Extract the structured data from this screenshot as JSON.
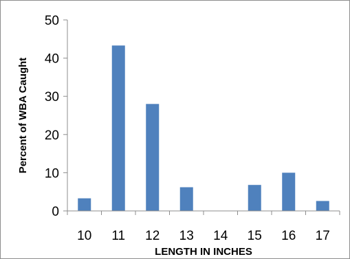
{
  "chart_data": {
    "type": "bar",
    "categories": [
      "10",
      "11",
      "12",
      "13",
      "14",
      "15",
      "16",
      "17"
    ],
    "values": [
      3.3,
      43.3,
      28.0,
      6.2,
      0,
      6.8,
      10.0,
      2.6
    ],
    "title": "",
    "xlabel": "LENGTH IN INCHES",
    "ylabel": "Percent  of WBA Caught",
    "ylim": [
      0,
      50
    ],
    "yticks": [
      0,
      10,
      20,
      30,
      40,
      50
    ],
    "grid": false,
    "legend": "none",
    "bar_color": "#4f81bd",
    "axis_color": "#8c8c8c"
  }
}
